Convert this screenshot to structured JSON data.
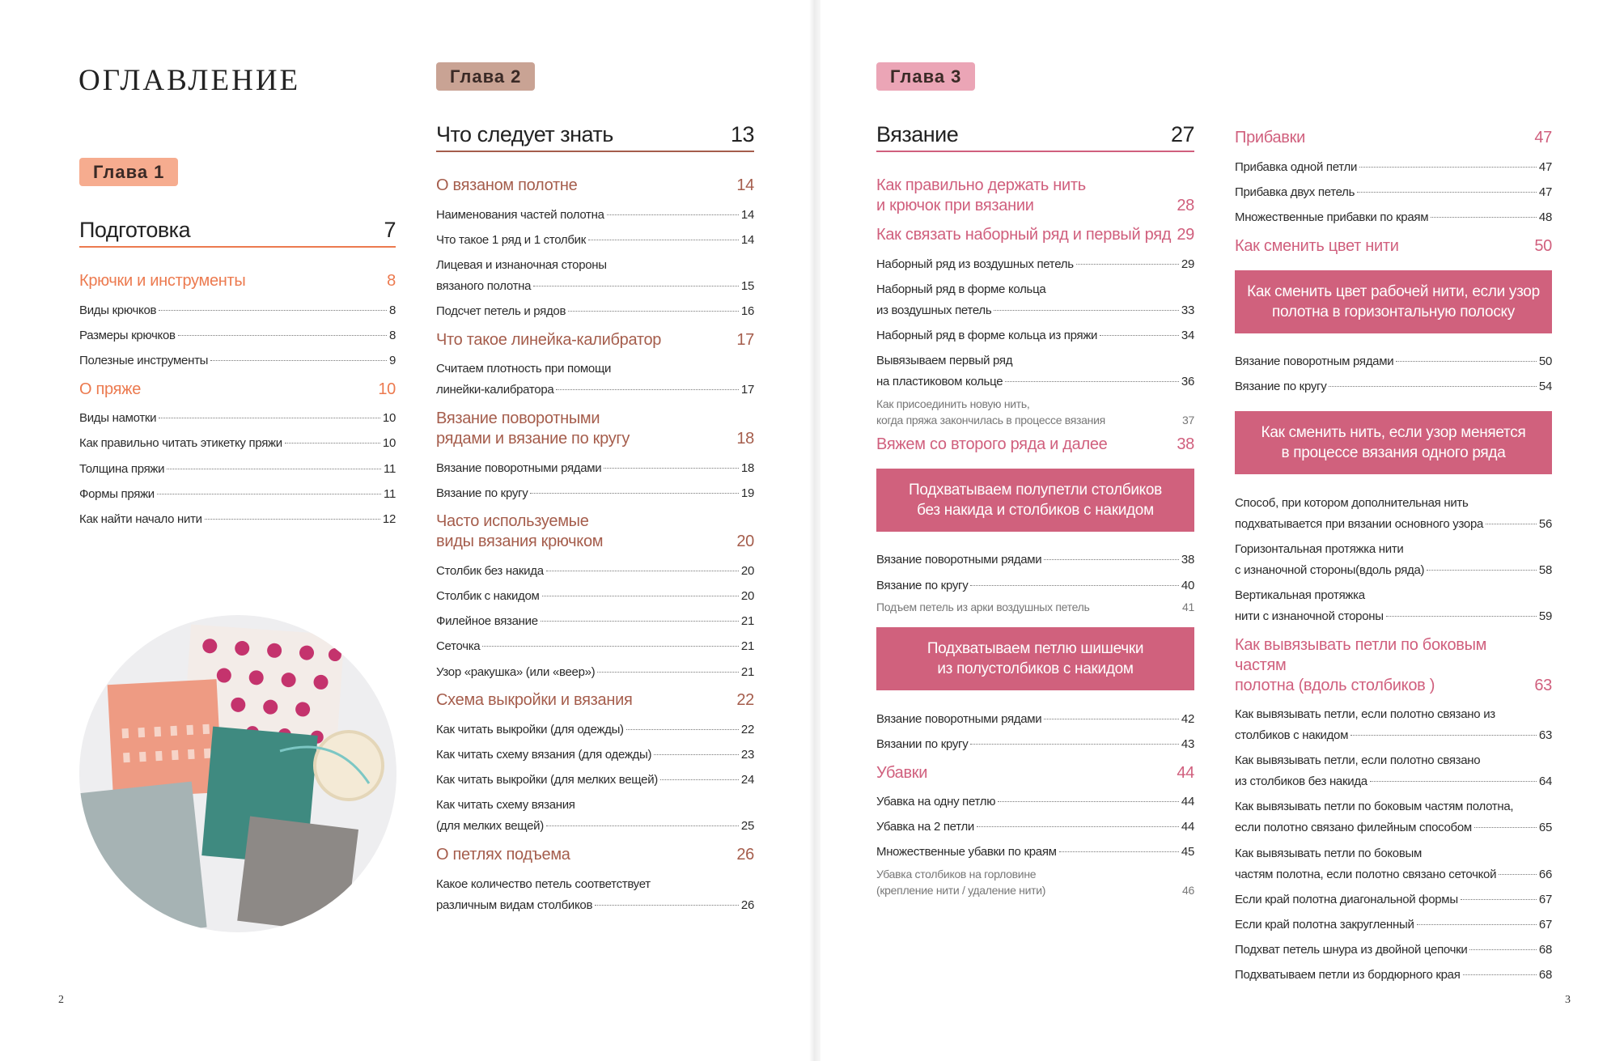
{
  "left_page": {
    "title": "ОГЛАВЛЕНИЕ",
    "page_number": 2,
    "columns": [
      [
        {
          "kind": "chapter",
          "text": "Глава 1"
        },
        {
          "kind": "section",
          "text": "Подготовка",
          "page": 7
        },
        {
          "kind": "subsection",
          "lines": [
            "Крючки и инструменты"
          ],
          "page": 8
        },
        {
          "kind": "entry",
          "lines": [
            "Виды крючков"
          ],
          "page": 8
        },
        {
          "kind": "entry",
          "lines": [
            "Размеры крючков"
          ],
          "page": 8
        },
        {
          "kind": "entry",
          "lines": [
            "Полезные инструменты"
          ],
          "page": 9
        },
        {
          "kind": "subsection",
          "lines": [
            "О пряже"
          ],
          "page": 10
        },
        {
          "kind": "entry",
          "lines": [
            "Виды намотки"
          ],
          "page": 10
        },
        {
          "kind": "entry",
          "lines": [
            "Как правильно читать этикетку пряжи"
          ],
          "page": 10
        },
        {
          "kind": "entry",
          "lines": [
            "Толщина пряжи"
          ],
          "page": 11
        },
        {
          "kind": "entry",
          "lines": [
            "Формы пряжи"
          ],
          "page": 11
        },
        {
          "kind": "entry",
          "lines": [
            "Как найти начало нити"
          ],
          "page": 12
        }
      ],
      [
        {
          "kind": "chapter",
          "text": "Глава 2"
        },
        {
          "kind": "section",
          "text": "Что следует знать",
          "page": 13
        },
        {
          "kind": "subsection",
          "lines": [
            "О вязаном полотне"
          ],
          "page": 14
        },
        {
          "kind": "entry",
          "lines": [
            "Наименования частей полотна"
          ],
          "page": 14
        },
        {
          "kind": "entry",
          "lines": [
            "Что такое 1 ряд и 1 столбик"
          ],
          "page": 14
        },
        {
          "kind": "entry",
          "lines": [
            "Лицевая и изнаночная стороны",
            "вязаного полотна"
          ],
          "page": 15
        },
        {
          "kind": "entry",
          "lines": [
            "Подсчет петель и рядов"
          ],
          "page": 16
        },
        {
          "kind": "subsection",
          "lines": [
            "Что такое линейка-калибратор"
          ],
          "page": 17
        },
        {
          "kind": "entry",
          "lines": [
            "Считаем плотность при помощи",
            "линейки-калибратора"
          ],
          "page": 17
        },
        {
          "kind": "subsection",
          "lines": [
            "Вязание поворотными",
            "рядами и вязание по кругу"
          ],
          "page": 18
        },
        {
          "kind": "entry",
          "lines": [
            "Вязание поворотными рядами"
          ],
          "page": 18
        },
        {
          "kind": "entry",
          "lines": [
            "Вязание по кругу"
          ],
          "page": 19
        },
        {
          "kind": "subsection",
          "lines": [
            "Часто используемые",
            "виды вязания крючком"
          ],
          "page": 20
        },
        {
          "kind": "entry",
          "lines": [
            "Столбик без накида"
          ],
          "page": 20
        },
        {
          "kind": "entry",
          "lines": [
            "Столбик с накидом"
          ],
          "page": 20
        },
        {
          "kind": "entry",
          "lines": [
            "Филейное вязание"
          ],
          "page": 21
        },
        {
          "kind": "entry",
          "lines": [
            "Сеточка"
          ],
          "page": 21
        },
        {
          "kind": "entry",
          "lines": [
            "Узор «ракушка» (или «веер»)"
          ],
          "page": 21
        },
        {
          "kind": "subsection",
          "lines": [
            "Схема выкройки и вязания"
          ],
          "page": 22
        },
        {
          "kind": "entry",
          "lines": [
            "Как читать выкройки (для одежды)"
          ],
          "page": 22
        },
        {
          "kind": "entry",
          "lines": [
            "Как читать схему вязания (для одежды)"
          ],
          "page": 23
        },
        {
          "kind": "entry",
          "lines": [
            "Как читать выкройки (для мелких вещей)"
          ],
          "page": 24
        },
        {
          "kind": "entry",
          "lines": [
            "Как читать схему вязания",
            "(для мелких вещей)"
          ],
          "page": 25
        },
        {
          "kind": "subsection",
          "lines": [
            "О петлях подъема"
          ],
          "page": 26
        },
        {
          "kind": "entry",
          "lines": [
            "Какое количество петель соответствует",
            "различным видам столбиков"
          ],
          "page": 26
        }
      ]
    ]
  },
  "right_page": {
    "page_number": 3,
    "columns": [
      [
        {
          "kind": "chapter",
          "text": "Глава 3"
        },
        {
          "kind": "section",
          "text": "Вязание",
          "page": 27
        },
        {
          "kind": "subsection",
          "lines": [
            "Как правильно держать нить",
            "и крючок при вязании"
          ],
          "page": 28
        },
        {
          "kind": "subsection",
          "lines": [
            "Как связать наборный ряд и первый ряд"
          ],
          "page": 29
        },
        {
          "kind": "entry",
          "lines": [
            "Наборный ряд из воздушных петель"
          ],
          "page": 29
        },
        {
          "kind": "entry",
          "lines": [
            "Наборный ряд в форме кольца",
            "из воздушных петель"
          ],
          "page": 33
        },
        {
          "kind": "entry",
          "lines": [
            "Наборный ряд в форме кольца из пряжи"
          ],
          "page": 34
        },
        {
          "kind": "entry",
          "lines": [
            "Вывязываем первый ряд",
            "на пластиковом кольце"
          ],
          "page": 36
        },
        {
          "kind": "note",
          "lines": [
            "Как присоединить новую нить,",
            "когда пряжа закончилась в процессе вязания"
          ],
          "page": 37
        },
        {
          "kind": "subsection",
          "lines": [
            "Вяжем со второго ряда и далее"
          ],
          "page": 38
        },
        {
          "kind": "box",
          "lines": [
            "Подхватываем полупетли столбиков",
            "без накида и столбиков с накидом"
          ]
        },
        {
          "kind": "entry",
          "lines": [
            "Вязание поворотными рядами"
          ],
          "page": 38
        },
        {
          "kind": "entry",
          "lines": [
            "Вязание по кругу"
          ],
          "page": 40
        },
        {
          "kind": "note",
          "lines": [
            "Подъем петель из арки воздушных петель"
          ],
          "page": 41
        },
        {
          "kind": "box",
          "lines": [
            "Подхватываем петлю шишечки",
            "из полустолбиков с накидом"
          ]
        },
        {
          "kind": "entry",
          "lines": [
            "Вязание поворотными рядами"
          ],
          "page": 42
        },
        {
          "kind": "entry",
          "lines": [
            "Вязании по кругу"
          ],
          "page": 43
        },
        {
          "kind": "subsection",
          "lines": [
            "Убавки"
          ],
          "page": 44
        },
        {
          "kind": "entry",
          "lines": [
            "Убавка на одну петлю"
          ],
          "page": 44
        },
        {
          "kind": "entry",
          "lines": [
            "Убавка на 2 петли"
          ],
          "page": 44
        },
        {
          "kind": "entry",
          "lines": [
            "Множественные убавки по краям"
          ],
          "page": 45
        },
        {
          "kind": "note",
          "lines": [
            "Убавка столбиков на горловине",
            "(крепление нити / удаление нити)"
          ],
          "page": 46
        }
      ],
      [
        {
          "kind": "subsection",
          "lines": [
            "Прибавки"
          ],
          "page": 47
        },
        {
          "kind": "entry",
          "lines": [
            "Прибавка одной петли"
          ],
          "page": 47
        },
        {
          "kind": "entry",
          "lines": [
            "Прибавка двух петель"
          ],
          "page": 47
        },
        {
          "kind": "entry",
          "lines": [
            "Множественные прибавки по краям"
          ],
          "page": 48
        },
        {
          "kind": "subsection",
          "lines": [
            "Как сменить цвет нити"
          ],
          "page": 50
        },
        {
          "kind": "box",
          "lines": [
            "Как сменить цвет рабочей нити, если узор",
            "полотна в горизонтальную полоску"
          ]
        },
        {
          "kind": "entry",
          "lines": [
            "Вязание поворотным рядами"
          ],
          "page": 50
        },
        {
          "kind": "entry",
          "lines": [
            "Вязание по кругу"
          ],
          "page": 54
        },
        {
          "kind": "box",
          "lines": [
            "Как сменить нить, если узор меняется",
            "в процессе вязания одного ряда"
          ]
        },
        {
          "kind": "entry",
          "lines": [
            "Способ, при котором дополнительная нить",
            "подхватывается при вязании основного узора"
          ],
          "page": 56
        },
        {
          "kind": "entry",
          "lines": [
            "Горизонтальная протяжка нити",
            "с изнаночной стороны(вдоль ряда)"
          ],
          "page": 58
        },
        {
          "kind": "entry",
          "lines": [
            "Вертикальная протяжка",
            "нити с изнаночной стороны"
          ],
          "page": 59
        },
        {
          "kind": "subsection",
          "lines": [
            "Как вывязывать петли по боковым частям",
            "полотна (вдоль столбиков )"
          ],
          "page": 63
        },
        {
          "kind": "entry",
          "lines": [
            "Как вывязывать петли, если  полотно связано из",
            "столбиков с накидом"
          ],
          "page": 63
        },
        {
          "kind": "entry",
          "lines": [
            "Как вывязывать петли, если полотно связано",
            "из столбиков без накида"
          ],
          "page": 64
        },
        {
          "kind": "entry",
          "lines": [
            "Как вывязывать петли по боковым частям полотна,",
            "если полотно связано филейным способом"
          ],
          "page": 65
        },
        {
          "kind": "entry",
          "lines": [
            "Как вывязывать петли по боковым",
            "частям полотна, если полотно связано сеточкой"
          ],
          "page": 66
        },
        {
          "kind": "entry",
          "lines": [
            "Если край полотна диагональной формы"
          ],
          "page": 67
        },
        {
          "kind": "entry",
          "lines": [
            "Если край полотна закругленный"
          ],
          "page": 67
        },
        {
          "kind": "entry",
          "lines": [
            "Подхват петель шнура из двойной цепочки"
          ],
          "page": 68
        },
        {
          "kind": "entry",
          "lines": [
            "Подхватываем петли из бордюрного края"
          ],
          "page": 68
        }
      ]
    ]
  }
}
